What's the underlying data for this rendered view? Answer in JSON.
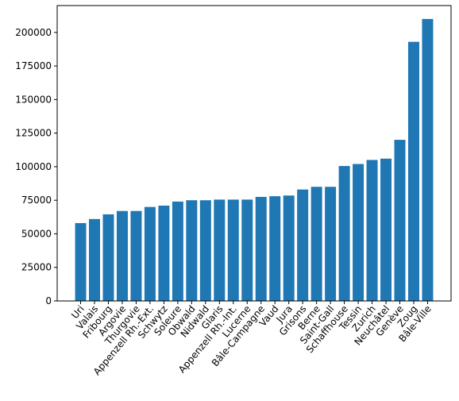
{
  "chart_data": {
    "type": "bar",
    "title": "",
    "xlabel": "",
    "ylabel": "",
    "categories": [
      "Uri",
      "Valais",
      "Fribourg",
      "Argovie",
      "Thurgovie",
      "Appenzell Rh.-Ext.",
      "Schwytz",
      "Soleure",
      "Obwald",
      "Nidwald",
      "Glaris",
      "Appenzell Rh.-Int.",
      "Lucerne",
      "Bâle-Campagne",
      "Vaud",
      "Jura",
      "Grisons",
      "Berne",
      "Saint-Gall",
      "Schaffhouse",
      "Tessin",
      "Zurich",
      "Neuchâtel",
      "Genève",
      "Zoug",
      "Bâle-Ville"
    ],
    "values": [
      58000,
      61000,
      64500,
      67000,
      67000,
      70000,
      71000,
      74000,
      75000,
      75000,
      75500,
      75500,
      75500,
      77500,
      78000,
      78500,
      83000,
      85000,
      85000,
      100500,
      102000,
      105000,
      106000,
      120000,
      193000,
      210000
    ],
    "ylim": [
      0,
      220000
    ],
    "yticks": [
      0,
      25000,
      50000,
      75000,
      100000,
      125000,
      150000,
      175000,
      200000
    ],
    "grid": false,
    "bar_color": "#1f77b4"
  }
}
